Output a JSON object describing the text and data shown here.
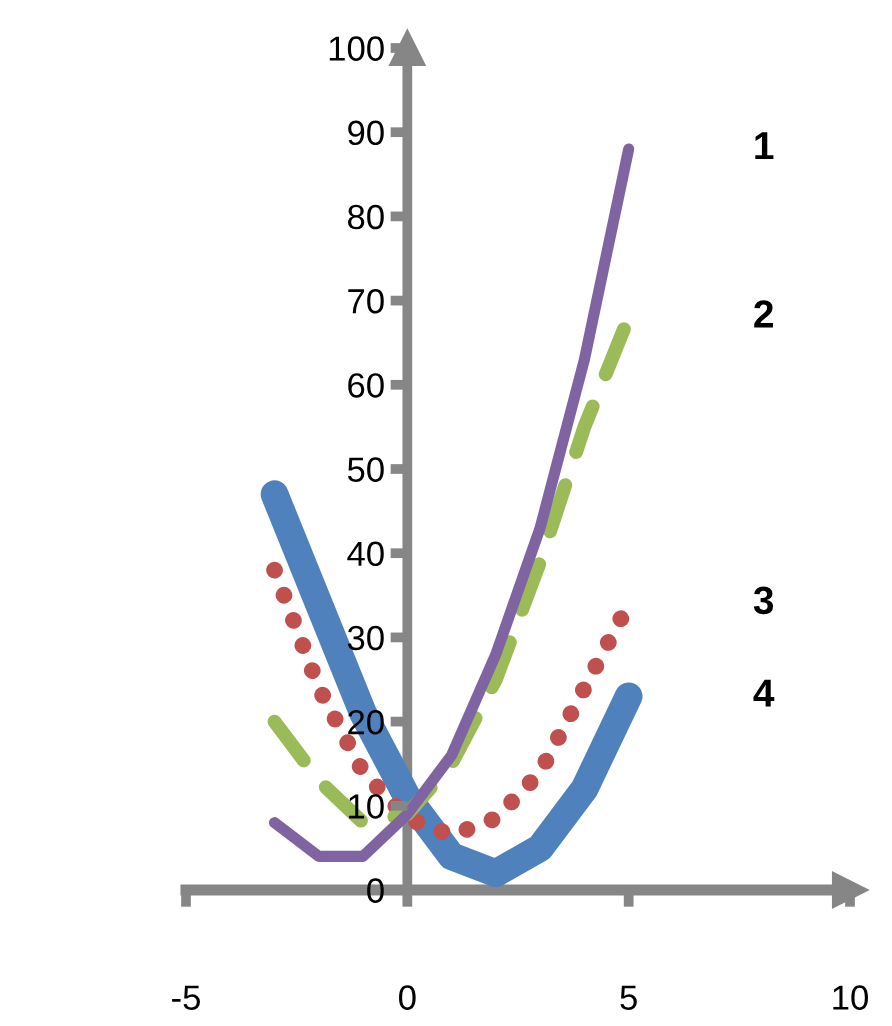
{
  "chart_data": {
    "type": "line",
    "x": [
      -3,
      -2,
      -1,
      0,
      1,
      2,
      3,
      4,
      5
    ],
    "xlim": [
      -5,
      10
    ],
    "xticks": [
      -5,
      0,
      5,
      10
    ],
    "ylim": [
      0,
      100
    ],
    "yticks": [
      0,
      10,
      20,
      30,
      40,
      50,
      60,
      70,
      80,
      90,
      100
    ],
    "grid": false,
    "legend": false,
    "marker": "none",
    "series": [
      {
        "name": "1",
        "color": "#8064a2",
        "line_style": "solid",
        "values": [
          8,
          4,
          4,
          9,
          16,
          28,
          43,
          63,
          88
        ]
      },
      {
        "name": "2",
        "color": "#9bbb59",
        "line_style": "dashed",
        "values": [
          20,
          13,
          8,
          9,
          15,
          25,
          39,
          55,
          68
        ]
      },
      {
        "name": "3",
        "color": "#c0504d",
        "line_style": "dotted",
        "values": [
          38,
          24,
          14,
          8.5,
          6.5,
          8.5,
          14,
          24,
          34
        ]
      },
      {
        "name": "4",
        "color": "#4f81bd",
        "line_style": "solid",
        "values": [
          47,
          34,
          21,
          11,
          4,
          2,
          5,
          12,
          23
        ]
      }
    ]
  }
}
